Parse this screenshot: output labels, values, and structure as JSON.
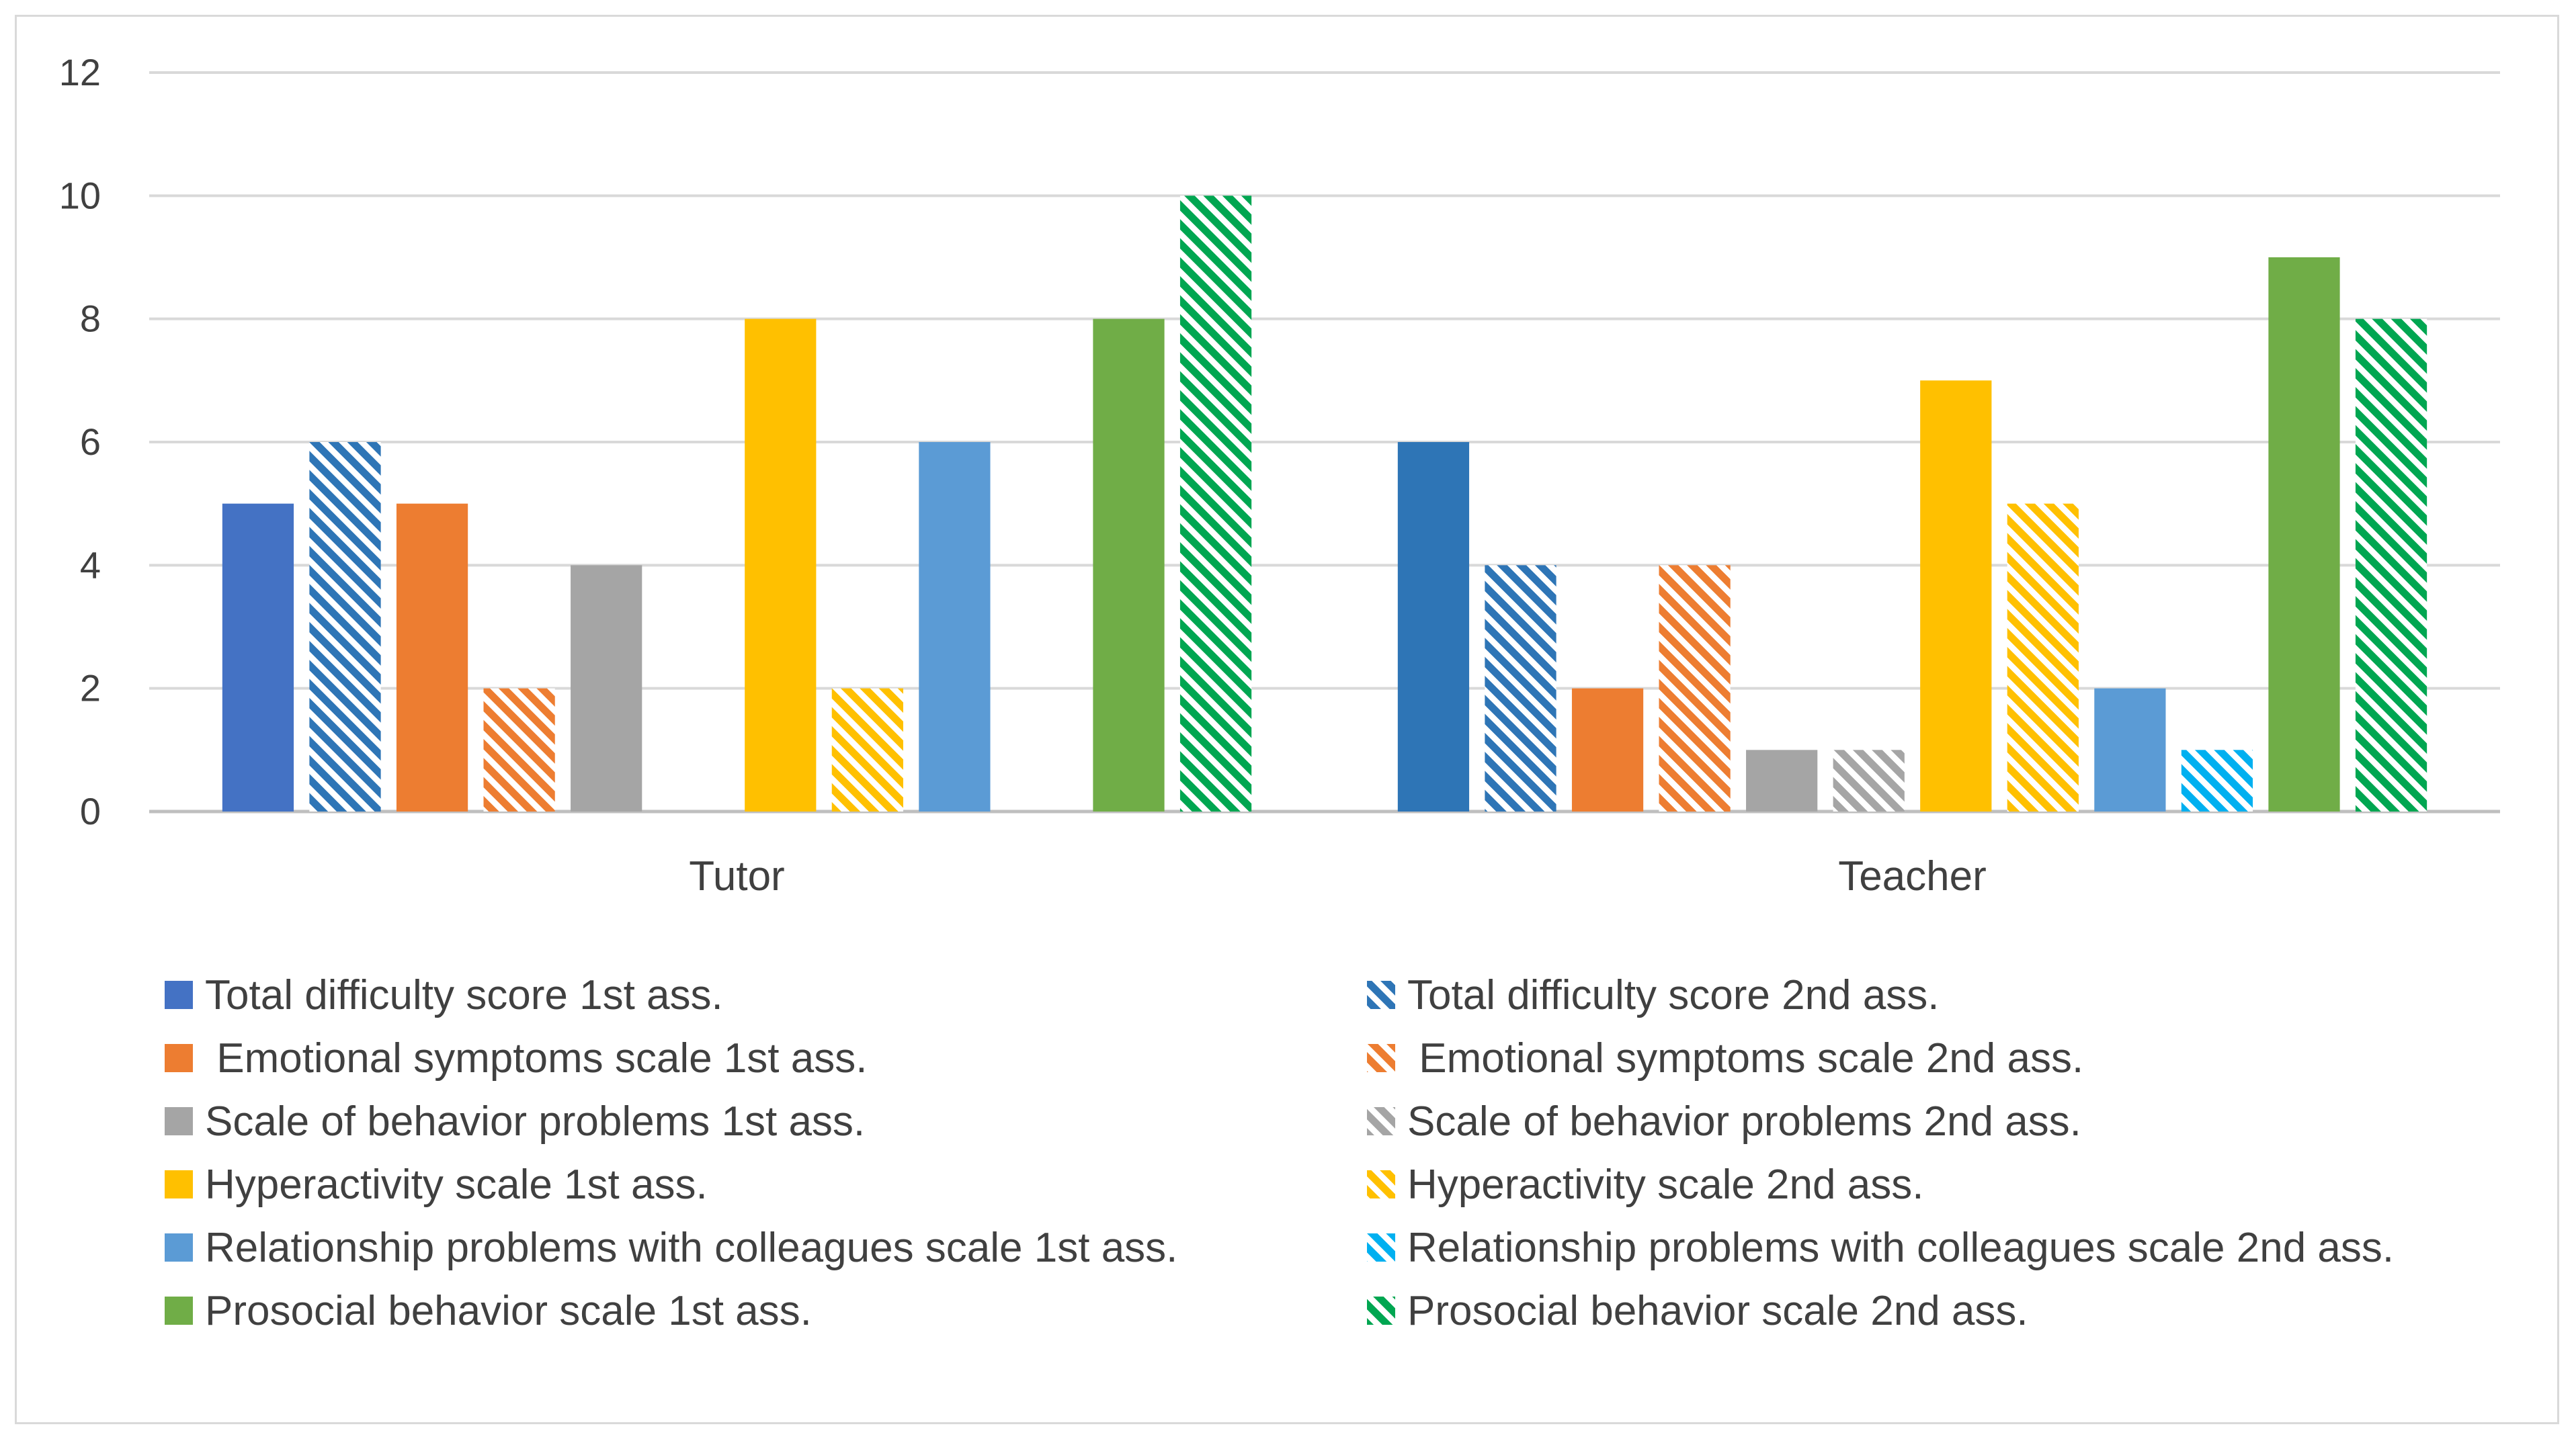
{
  "chart_data": {
    "type": "bar",
    "title": "",
    "xlabel": "",
    "ylabel": "",
    "ylim": [
      0,
      12
    ],
    "yticks": [
      0,
      2,
      4,
      6,
      8,
      10,
      12
    ],
    "grid": true,
    "legend_position": "bottom",
    "categories": [
      "Tutor",
      "Teacher"
    ],
    "series": [
      {
        "name": "Total difficulty score 1st ass.",
        "values": [
          5,
          6
        ],
        "colors": [
          "#4472c4",
          "#2e75b6"
        ],
        "pattern": "solid"
      },
      {
        "name": "Total difficulty score 2nd ass.",
        "values": [
          6,
          4
        ],
        "colors": [
          "#2e75b6",
          "#2e75b6"
        ],
        "pattern": "hatched"
      },
      {
        "name": " Emotional symptoms scale 1st ass.",
        "values": [
          5,
          2
        ],
        "colors": [
          "#ed7d31",
          "#ed7d31"
        ],
        "pattern": "solid"
      },
      {
        "name": " Emotional symptoms scale 2nd ass.",
        "values": [
          2,
          4
        ],
        "colors": [
          "#ed7d31",
          "#ed7d31"
        ],
        "pattern": "hatched"
      },
      {
        "name": "Scale of behavior problems 1st ass.",
        "values": [
          4,
          1
        ],
        "colors": [
          "#a5a5a5",
          "#a5a5a5"
        ],
        "pattern": "solid"
      },
      {
        "name": "Scale of behavior problems 2nd ass.",
        "values": [
          0,
          1
        ],
        "colors": [
          "#a5a5a5",
          "#a5a5a5"
        ],
        "pattern": "hatched"
      },
      {
        "name": "Hyperactivity scale 1st ass.",
        "values": [
          8,
          7
        ],
        "colors": [
          "#ffc000",
          "#ffc000"
        ],
        "pattern": "solid"
      },
      {
        "name": "Hyperactivity scale 2nd ass.",
        "values": [
          2,
          5
        ],
        "colors": [
          "#ffc000",
          "#ffc000"
        ],
        "pattern": "hatched"
      },
      {
        "name": "Relationship problems with colleagues scale 1st ass.",
        "values": [
          6,
          2
        ],
        "colors": [
          "#5b9bd5",
          "#5b9bd5"
        ],
        "pattern": "solid"
      },
      {
        "name": "Relationship problems with colleagues scale 2nd ass.",
        "values": [
          0,
          1
        ],
        "colors": [
          "#00b0f0",
          "#00b0f0"
        ],
        "pattern": "hatched"
      },
      {
        "name": "Prosocial behavior scale 1st ass.",
        "values": [
          8,
          9
        ],
        "colors": [
          "#70ad47",
          "#70ad47"
        ],
        "pattern": "solid"
      },
      {
        "name": "Prosocial behavior scale 2nd ass.",
        "values": [
          10,
          8
        ],
        "colors": [
          "#00a651",
          "#00a651"
        ],
        "pattern": "hatched"
      }
    ]
  }
}
